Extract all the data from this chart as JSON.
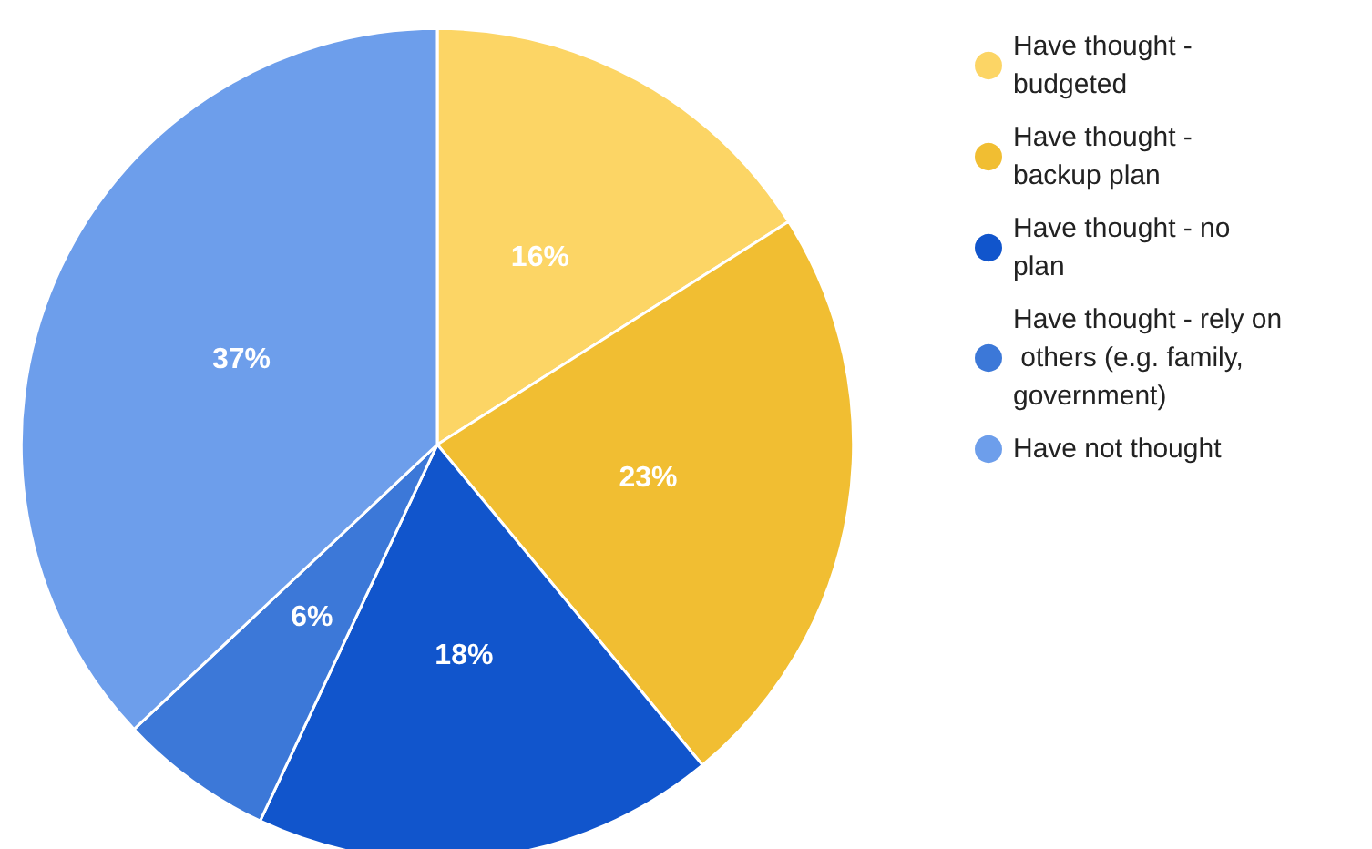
{
  "chart_data": {
    "type": "pie",
    "categories": [
      "Have thought - budgeted",
      "Have thought - backup plan",
      "Have thought - no plan",
      "Have thought - rely on others (e.g. family, government)",
      "Have not thought"
    ],
    "values": [
      16,
      23,
      18,
      6,
      37
    ],
    "colors": [
      "#fcd565",
      "#f1be32",
      "#1155cc",
      "#3c78d8",
      "#6d9eeb"
    ],
    "value_labels": [
      "16%",
      "23%",
      "18%",
      "6%",
      "37%"
    ],
    "legend": "right"
  }
}
